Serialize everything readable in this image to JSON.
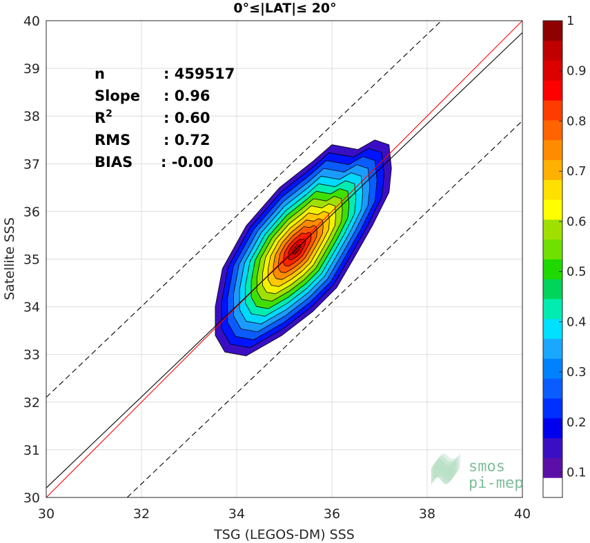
{
  "chart_data": {
    "type": "contour-density",
    "title": "0°≤|LAT|≤ 20°",
    "xlabel": "TSG (LEGOS-DM) SSS",
    "ylabel": "Satellite SSS",
    "xlim": [
      30,
      40
    ],
    "ylim": [
      30,
      40
    ],
    "xticks": [
      "30",
      "32",
      "34",
      "36",
      "38",
      "40"
    ],
    "yticks": [
      "30",
      "31",
      "32",
      "33",
      "34",
      "35",
      "36",
      "37",
      "38",
      "39",
      "40"
    ],
    "grid": true,
    "stats": [
      {
        "label": "n",
        "value": ": 459517"
      },
      {
        "label": "Slope",
        "value": ": 0.96"
      },
      {
        "label": "R",
        "sup": "2",
        "value": ": 0.60"
      },
      {
        "label": "RMS",
        "value": ": 0.72"
      },
      {
        "label": "BIAS",
        "value": ": -0.00"
      }
    ],
    "lines": [
      {
        "name": "identity",
        "color": "#ff0000",
        "style": "solid",
        "points": [
          [
            30,
            30
          ],
          [
            40,
            40
          ]
        ]
      },
      {
        "name": "fit",
        "color": "#000000",
        "style": "solid",
        "points": [
          [
            30,
            30.2
          ],
          [
            40,
            39.75
          ]
        ]
      },
      {
        "name": "upper",
        "color": "#000000",
        "style": "dashed",
        "points": [
          [
            30,
            32.1
          ],
          [
            38.3,
            40
          ]
        ]
      },
      {
        "name": "lower",
        "color": "#000000",
        "style": "dashed",
        "points": [
          [
            31.7,
            30
          ],
          [
            40,
            37.9
          ]
        ]
      }
    ],
    "density": {
      "center": [
        35.25,
        35.2
      ],
      "levels": [
        0.05,
        0.1,
        0.2,
        0.3,
        0.4,
        0.5,
        0.6,
        0.7,
        0.8,
        0.9
      ],
      "outer_polygon": [
        [
          33.55,
          33.4
        ],
        [
          33.75,
          33.05
        ],
        [
          34.2,
          32.97
        ],
        [
          34.95,
          33.4
        ],
        [
          35.6,
          33.9
        ],
        [
          36.1,
          34.4
        ],
        [
          36.45,
          35.0
        ],
        [
          36.85,
          35.7
        ],
        [
          37.2,
          36.4
        ],
        [
          37.25,
          36.9
        ],
        [
          37.2,
          37.4
        ],
        [
          36.9,
          37.5
        ],
        [
          36.55,
          37.3
        ],
        [
          36.0,
          37.4
        ],
        [
          35.6,
          37.05
        ],
        [
          34.9,
          36.5
        ],
        [
          34.2,
          35.7
        ],
        [
          33.7,
          34.8
        ],
        [
          33.55,
          34.0
        ]
      ],
      "colors": [
        "#3a0fc4",
        "#0014ff",
        "#0a5cff",
        "#1a9cff",
        "#00d9ff",
        "#00ecb0",
        "#3fe000",
        "#a0e000",
        "#f2f200",
        "#ffc800",
        "#ff8c00",
        "#ff5a00",
        "#ff2200",
        "#dd0000",
        "#a00000"
      ]
    },
    "colorbar": {
      "ticks": [
        "0.1",
        "0.2",
        "0.3",
        "0.4",
        "0.5",
        "0.6",
        "0.7",
        "0.8",
        "0.9",
        "1"
      ],
      "colors": [
        "#ffffff",
        "#5b0fa8",
        "#3a0fc4",
        "#0000ee",
        "#0030ff",
        "#0a5cff",
        "#0082ff",
        "#1aa8ff",
        "#00e0ff",
        "#00ecb0",
        "#00d45a",
        "#1ed800",
        "#6fe000",
        "#a0e000",
        "#ffff00",
        "#ffe000",
        "#ffb000",
        "#ff8c00",
        "#ff6400",
        "#ff3c00",
        "#ff0000",
        "#dd0000",
        "#c00000",
        "#8f0000"
      ]
    },
    "logo": {
      "line1": "smos",
      "line2": "pi-mep"
    }
  }
}
